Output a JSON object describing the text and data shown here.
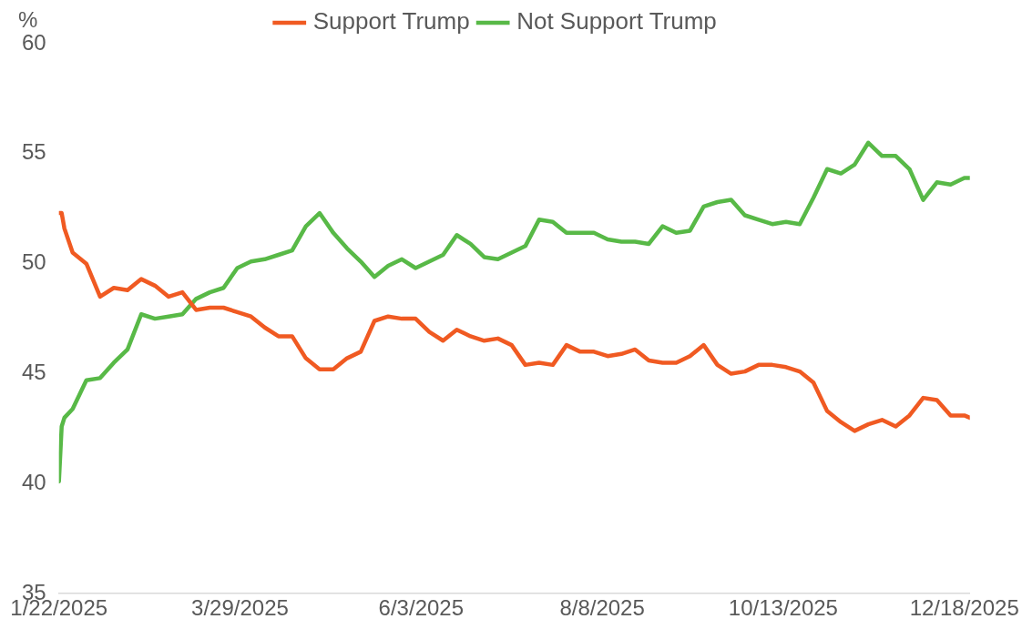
{
  "chart_data": {
    "type": "line",
    "ylabel": "%",
    "legend": "top",
    "grid": false,
    "marker": "none",
    "line_style": "solid",
    "x": [
      "2025-01-22",
      "2025-01-23",
      "2025-01-24",
      "2025-01-27",
      "2025-02-01",
      "2025-02-06",
      "2025-02-11",
      "2025-02-16",
      "2025-02-21",
      "2025-02-26",
      "2025-03-03",
      "2025-03-08",
      "2025-03-13",
      "2025-03-18",
      "2025-03-23",
      "2025-03-28",
      "2025-04-02",
      "2025-04-07",
      "2025-04-12",
      "2025-04-17",
      "2025-04-22",
      "2025-04-27",
      "2025-05-02",
      "2025-05-07",
      "2025-05-12",
      "2025-05-17",
      "2025-05-22",
      "2025-05-27",
      "2025-06-01",
      "2025-06-06",
      "2025-06-11",
      "2025-06-16",
      "2025-06-21",
      "2025-06-26",
      "2025-07-01",
      "2025-07-06",
      "2025-07-11",
      "2025-07-16",
      "2025-07-21",
      "2025-07-26",
      "2025-07-31",
      "2025-08-05",
      "2025-08-10",
      "2025-08-15",
      "2025-08-20",
      "2025-08-25",
      "2025-08-30",
      "2025-09-04",
      "2025-09-09",
      "2025-09-14",
      "2025-09-19",
      "2025-09-24",
      "2025-09-29",
      "2025-10-04",
      "2025-10-09",
      "2025-10-14",
      "2025-10-19",
      "2025-10-24",
      "2025-10-29",
      "2025-11-03",
      "2025-11-08",
      "2025-11-13",
      "2025-11-18",
      "2025-11-23",
      "2025-11-28",
      "2025-12-03",
      "2025-12-08",
      "2025-12-13",
      "2025-12-18",
      "2025-12-20"
    ],
    "series": [
      {
        "name": "Support Trump",
        "color": "#f05a22",
        "values": [
          52.3,
          52.3,
          51.6,
          50.5,
          50.0,
          48.5,
          48.9,
          48.8,
          49.3,
          49.0,
          48.5,
          48.7,
          47.9,
          48.0,
          48.0,
          47.8,
          47.6,
          47.1,
          46.7,
          46.7,
          45.7,
          45.2,
          45.2,
          45.7,
          46.0,
          47.4,
          47.6,
          47.5,
          47.5,
          46.9,
          46.5,
          47.0,
          46.7,
          46.5,
          46.6,
          46.3,
          45.4,
          45.5,
          45.4,
          46.3,
          46.0,
          46.0,
          45.8,
          45.9,
          46.1,
          45.6,
          45.5,
          45.5,
          45.8,
          46.3,
          45.4,
          45.0,
          45.1,
          45.4,
          45.4,
          45.3,
          45.1,
          44.6,
          43.3,
          42.8,
          42.4,
          42.7,
          42.9,
          42.6,
          43.1,
          43.9,
          43.8,
          43.1,
          43.1,
          43.0
        ]
      },
      {
        "name": "Not Support Trump",
        "color": "#58b947",
        "values": [
          40.1,
          42.6,
          43.0,
          43.4,
          44.7,
          44.8,
          45.5,
          46.1,
          47.7,
          47.5,
          47.6,
          47.7,
          48.4,
          48.7,
          48.9,
          49.8,
          50.1,
          50.2,
          50.4,
          50.6,
          51.7,
          52.3,
          51.4,
          50.7,
          50.1,
          49.4,
          49.9,
          50.2,
          49.8,
          50.1,
          50.4,
          51.3,
          50.9,
          50.3,
          50.2,
          50.5,
          50.8,
          52.0,
          51.9,
          51.4,
          51.4,
          51.4,
          51.1,
          51.0,
          51.0,
          50.9,
          51.7,
          51.4,
          51.5,
          52.6,
          52.8,
          52.9,
          52.2,
          52.0,
          51.8,
          51.9,
          51.8,
          53.0,
          54.3,
          54.1,
          54.5,
          55.5,
          54.9,
          54.9,
          54.3,
          52.9,
          53.7,
          53.6,
          53.9,
          53.9
        ]
      }
    ],
    "xlim": [
      "2025-01-22",
      "2025-12-20"
    ],
    "xticks": [
      {
        "value": "2025-01-22",
        "label": "1/22/2025"
      },
      {
        "value": "2025-03-29",
        "label": "3/29/2025"
      },
      {
        "value": "2025-06-03",
        "label": "6/3/2025"
      },
      {
        "value": "2025-08-08",
        "label": "8/8/2025"
      },
      {
        "value": "2025-10-13",
        "label": "10/13/2025"
      },
      {
        "value": "2025-12-18",
        "label": "12/18/2025"
      }
    ],
    "ylim": [
      35,
      60
    ],
    "yticks": [
      35,
      40,
      45,
      50,
      55,
      60
    ]
  }
}
